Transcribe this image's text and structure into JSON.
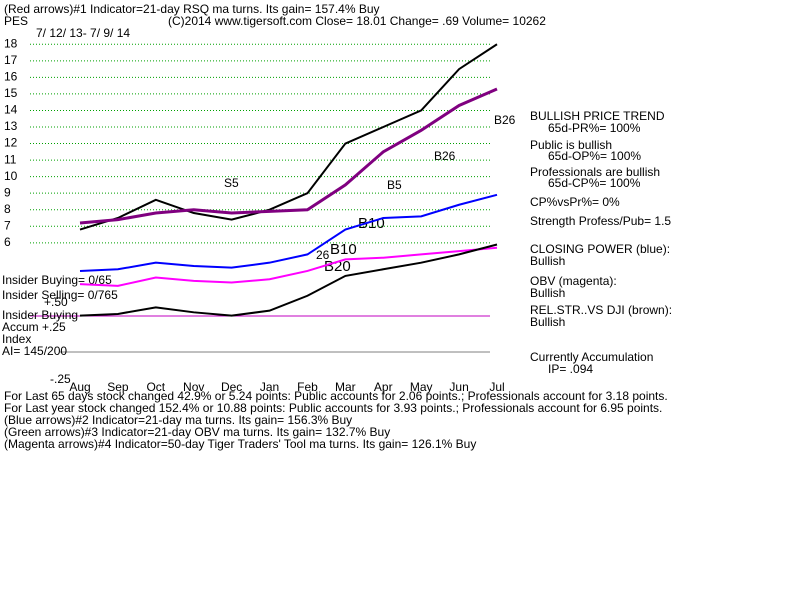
{
  "header": {
    "line1": "(Red arrows)#1 Indicator=21-day RSQ ma turns. Its gain= 157.4% Buy",
    "symbol": "PES",
    "line2": "(C)2014 www.tigersoft.com     Close=   18.01  Change=  .69 Volume= 10262",
    "dates": "7/ 12/ 13- 7/ 9/ 14"
  },
  "chart_data": {
    "type": "line",
    "categories": [
      "Aug",
      "Sep",
      "Oct",
      "Nov",
      "Dec",
      "Jan",
      "Feb",
      "Mar",
      "Apr",
      "May",
      "Jun",
      "Jul"
    ],
    "series": [
      {
        "color": "#000000",
        "values": [
          6.8,
          7.5,
          8.6,
          7.8,
          7.4,
          8.0,
          9.0,
          12.0,
          13.0,
          14.0,
          16.5,
          18.0
        ]
      },
      {
        "color": "#800080",
        "values": [
          7.2,
          7.4,
          7.8,
          8.0,
          7.8,
          7.9,
          8.0,
          9.5,
          11.5,
          12.8,
          14.3,
          15.3
        ]
      },
      {
        "color": "#0000ff",
        "values": [
          4.3,
          4.4,
          4.8,
          4.6,
          4.5,
          4.8,
          5.3,
          6.8,
          7.5,
          7.6,
          8.3,
          8.9
        ]
      },
      {
        "color": "#ff00ff",
        "values": [
          3.5,
          3.4,
          3.9,
          3.7,
          3.6,
          3.8,
          4.3,
          5.0,
          5.1,
          5.3,
          5.5,
          5.7
        ]
      },
      {
        "color": "#000000",
        "values": [
          1.6,
          1.7,
          2.1,
          1.8,
          1.6,
          1.9,
          2.8,
          4.0,
          4.4,
          4.8,
          5.3,
          5.9
        ]
      }
    ],
    "ylim": [
      -3.5,
      18.5
    ],
    "yticks": [
      6,
      7,
      8,
      9,
      10,
      11,
      12,
      13,
      14,
      15,
      16,
      17,
      18
    ],
    "grid": true
  },
  "signals": [
    "S5",
    "B26",
    "B26",
    "B5",
    "B10",
    "B10",
    "B20",
    "26"
  ],
  "left_labels": [
    "Insider Buying= 0/65",
    "Insider Selling= 0/765",
    "+.50",
    "Insider Buying",
    "Accum  +.25",
    "Index",
    "AI= 145/200",
    "-.25"
  ],
  "sidebar": [
    "BULLISH PRICE TREND",
    "65d-PR%= 100%",
    "Public is bullish",
    "65d-OP%= 100%",
    "Professionals are bullish",
    "65d-CP%= 100%",
    "CP%vsPr%=  0%",
    "Strength Profess/Pub= 1.5",
    "CLOSING POWER (blue):",
    "Bullish",
    "OBV (magenta):",
    "Bullish",
    "REL.STR..VS DJI (brown):",
    "Bullish",
    "Currently Accumulation",
    "IP=  .094"
  ],
  "footer": [
    "For Last 65 days stock changed  42.9% or  5.24 points:  Public accounts for  2.06 points.;  Professionals account for  3.18 points.",
    "For Last year stock changed  152.4% or  10.88 points:  Public accounts for  3.93 points.;  Professionals account for  6.95 points.",
    "(Blue arrows)#2 Indicator=21-day ma turns. Its gain= 156.3% Buy",
    "(Green arrows)#3 Indicator=21-day OBV ma turns. Its gain= 132.7% Buy",
    "(Magenta arrows)#4 Indicator=50-day Tiger Traders' Tool ma turns. Its gain= 126.1% Buy"
  ]
}
